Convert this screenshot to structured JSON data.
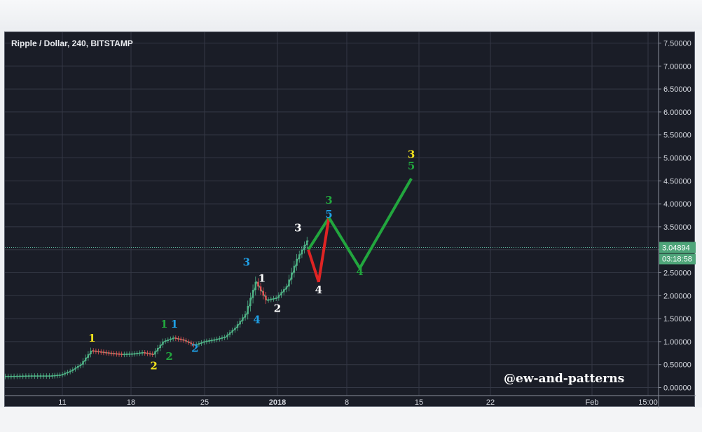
{
  "chart_data": {
    "type": "line",
    "title": "Ripple / Dollar, 240, BITSTAMP",
    "watermark": "@ew-and-patterns",
    "ylim": [
      0,
      7.5
    ],
    "y_ticks": [
      "7.50000",
      "7.00000",
      "6.50000",
      "6.00000",
      "5.50000",
      "5.00000",
      "4.50000",
      "4.00000",
      "3.50000",
      "3.00000",
      "2.50000",
      "2.00000",
      "1.50000",
      "1.00000",
      "0.50000",
      "0.00000"
    ],
    "x_ticks": [
      "11",
      "18",
      "25",
      "2018",
      "8",
      "15",
      "22",
      "Feb",
      "15:00"
    ],
    "last_price": "3.04894",
    "countdown": "03:18:58",
    "series": [
      {
        "x": [
          "2017-12-04",
          "2017-12-06",
          "2017-12-08",
          "2017-12-10",
          "2017-12-11",
          "2017-12-12",
          "2017-12-13",
          "2017-12-14",
          "2017-12-15",
          "2017-12-16",
          "2017-12-17",
          "2017-12-18",
          "2017-12-19",
          "2017-12-20",
          "2017-12-21",
          "2017-12-22",
          "2017-12-23",
          "2017-12-24",
          "2017-12-25",
          "2017-12-26",
          "2017-12-27",
          "2017-12-28",
          "2017-12-29",
          "2017-12-30",
          "2017-12-31",
          "2018-01-01",
          "2018-01-02",
          "2018-01-03",
          "2018-01-04"
        ],
        "values": [
          0.24,
          0.24,
          0.25,
          0.25,
          0.27,
          0.36,
          0.5,
          0.8,
          0.77,
          0.74,
          0.72,
          0.73,
          0.76,
          0.72,
          1.0,
          1.08,
          1.03,
          0.92,
          1.0,
          1.04,
          1.1,
          1.3,
          1.6,
          2.3,
          1.9,
          1.95,
          2.2,
          2.8,
          3.2
        ]
      }
    ],
    "projection": [
      {
        "color": "#22a63e",
        "x": [
          "2018-01-04",
          "2018-01-06"
        ],
        "values": [
          3.0,
          3.7
        ]
      },
      {
        "color": "#e02424",
        "x": [
          "2018-01-04",
          "2018-01-05",
          "2018-01-06"
        ],
        "values": [
          3.0,
          2.3,
          3.7
        ]
      },
      {
        "color": "#22a63e",
        "x": [
          "2018-01-06",
          "2018-01-09",
          "2018-01-14"
        ],
        "values": [
          3.7,
          2.6,
          4.55
        ]
      }
    ],
    "annotations": [
      {
        "text": "1",
        "color": "#f2e21b",
        "x": "2017-12-14",
        "y": 1.0
      },
      {
        "text": "2",
        "color": "#f2e21b",
        "x": "2017-12-20",
        "y": 0.4
      },
      {
        "text": "1",
        "color": "#22a63e",
        "x": "2017-12-21",
        "y": 1.3
      },
      {
        "text": "2",
        "color": "#22a63e",
        "x": "2017-12-21.5",
        "y": 0.6
      },
      {
        "text": "1",
        "color": "#1fa0e6",
        "x": "2017-12-22",
        "y": 1.3
      },
      {
        "text": "2",
        "color": "#1fa0e6",
        "x": "2017-12-24",
        "y": 0.78
      },
      {
        "text": "3",
        "color": "#1fa0e6",
        "x": "2017-12-29",
        "y": 2.65
      },
      {
        "text": "4",
        "color": "#1fa0e6",
        "x": "2017-12-30",
        "y": 1.4
      },
      {
        "text": "1",
        "color": "#ffffff",
        "x": "2017-12-30.5",
        "y": 2.3
      },
      {
        "text": "2",
        "color": "#ffffff",
        "x": "2018-01-01",
        "y": 1.65
      },
      {
        "text": "3",
        "color": "#ffffff",
        "x": "2018-01-03",
        "y": 3.4
      },
      {
        "text": "4",
        "color": "#ffffff",
        "x": "2018-01-05",
        "y": 2.05
      },
      {
        "text": "3",
        "color": "#22a63e",
        "x": "2018-01-06",
        "y": 4.0
      },
      {
        "text": "5",
        "color": "#1fa0e6",
        "x": "2018-01-06",
        "y": 3.7
      },
      {
        "text": "4",
        "color": "#22a63e",
        "x": "2018-01-09",
        "y": 2.45
      },
      {
        "text": "3",
        "color": "#f2e21b",
        "x": "2018-01-14",
        "y": 5.0
      },
      {
        "text": "5",
        "color": "#22a63e",
        "x": "2018-01-14",
        "y": 4.75
      }
    ]
  },
  "colors": {
    "background": "#1a1d27",
    "grid": "#343845",
    "axis_text": "#d8dbe2",
    "up_candle": "#4fb286",
    "down_candle": "#e55454",
    "price_badge": "#4fa57a"
  }
}
